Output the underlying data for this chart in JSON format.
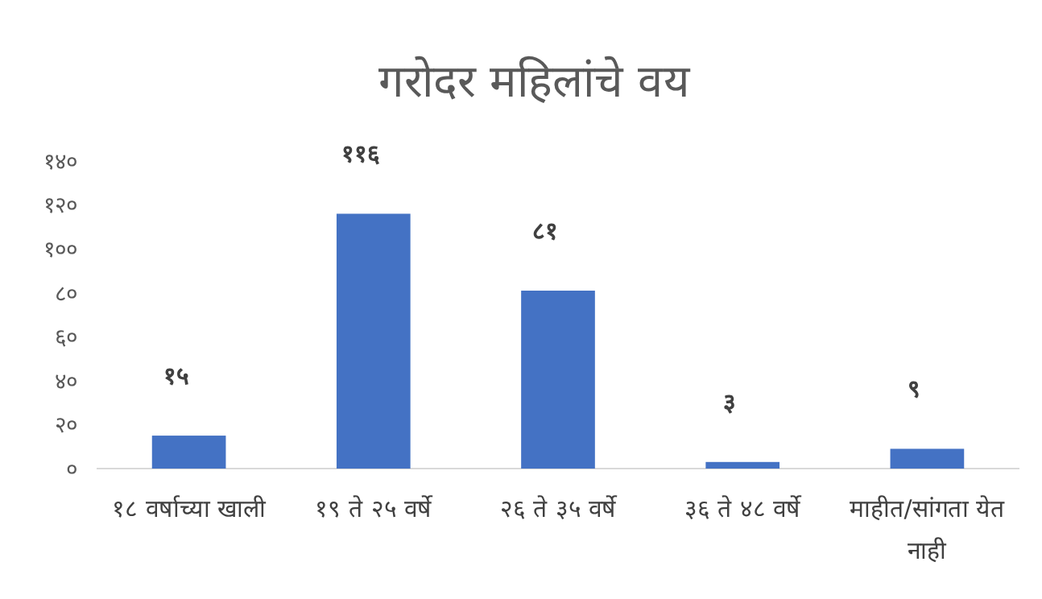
{
  "chart_data": {
    "type": "bar",
    "title": "गरोदर महिलांचे वय",
    "categories": [
      "१८ वर्षाच्या खाली",
      "१९ ते २५ वर्षे",
      "२६ ते ३५ वर्षे",
      "३६ ते ४८ वर्षे",
      "माहीत/सांगता येत नाही"
    ],
    "values": [
      15,
      116,
      81,
      3,
      9
    ],
    "value_labels": [
      "१५",
      "११६",
      "८१",
      "३",
      "९"
    ],
    "color": "#4472c4",
    "ylim": [
      0,
      140
    ],
    "yticks": [
      {
        "value": 0,
        "label": "०"
      },
      {
        "value": 20,
        "label": "२०"
      },
      {
        "value": 40,
        "label": "४०"
      },
      {
        "value": 60,
        "label": "६०"
      },
      {
        "value": 80,
        "label": "८०"
      },
      {
        "value": 100,
        "label": "१००"
      },
      {
        "value": 120,
        "label": "१२०"
      },
      {
        "value": 140,
        "label": "१४०"
      }
    ]
  }
}
